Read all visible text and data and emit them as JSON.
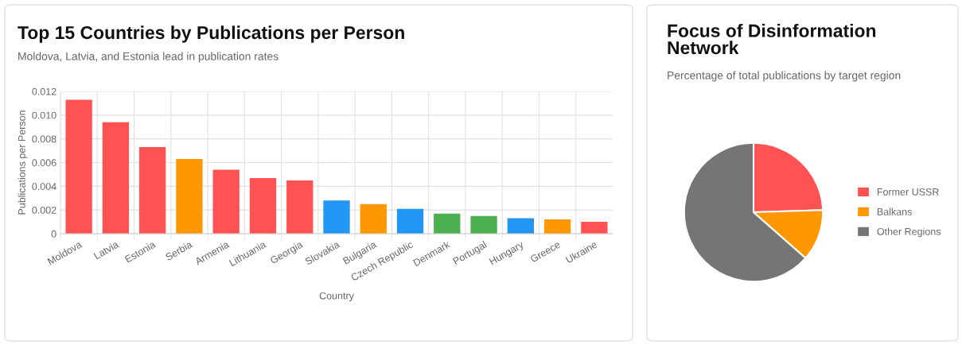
{
  "chart_data": [
    {
      "type": "bar",
      "title": "Top 15 Countries by Publications per Person",
      "subtitle": "Moldova, Latvia, and Estonia lead in publication rates",
      "xlabel": "Country",
      "ylabel": "Publications per Person",
      "categories": [
        "Moldova",
        "Latvia",
        "Estonia",
        "Serbia",
        "Armenia",
        "Lithuania",
        "Georgia",
        "Slovakia",
        "Bulgaria",
        "Czech Republic",
        "Denmark",
        "Portugal",
        "Hungary",
        "Greece",
        "Ukraine"
      ],
      "values": [
        0.0113,
        0.0094,
        0.0073,
        0.0063,
        0.0054,
        0.0047,
        0.0045,
        0.0028,
        0.0025,
        0.0021,
        0.0017,
        0.0015,
        0.0013,
        0.0012,
        0.001
      ],
      "colors": [
        "#ff5252",
        "#ff5252",
        "#ff5252",
        "#ff9800",
        "#ff5252",
        "#ff5252",
        "#ff5252",
        "#2196f3",
        "#ff9800",
        "#2196f3",
        "#4caf50",
        "#4caf50",
        "#2196f3",
        "#ff9800",
        "#ff5252"
      ],
      "ylim": [
        0,
        0.012
      ],
      "yticks": [
        0,
        0.002,
        0.004,
        0.006,
        0.008,
        {
          "value": 0.01,
          "label": "0.010"
        },
        0.012
      ],
      "grid": true
    },
    {
      "type": "pie",
      "title": "Focus of Disinformation Network",
      "subtitle": "Percentage of total publications by target region",
      "categories": [
        "Former USSR",
        "Balkans",
        "Other Regions"
      ],
      "values": [
        24.5,
        12,
        63.5
      ],
      "colors": [
        "#ff5252",
        "#ff9800",
        "#757575"
      ],
      "legend": "right"
    }
  ]
}
